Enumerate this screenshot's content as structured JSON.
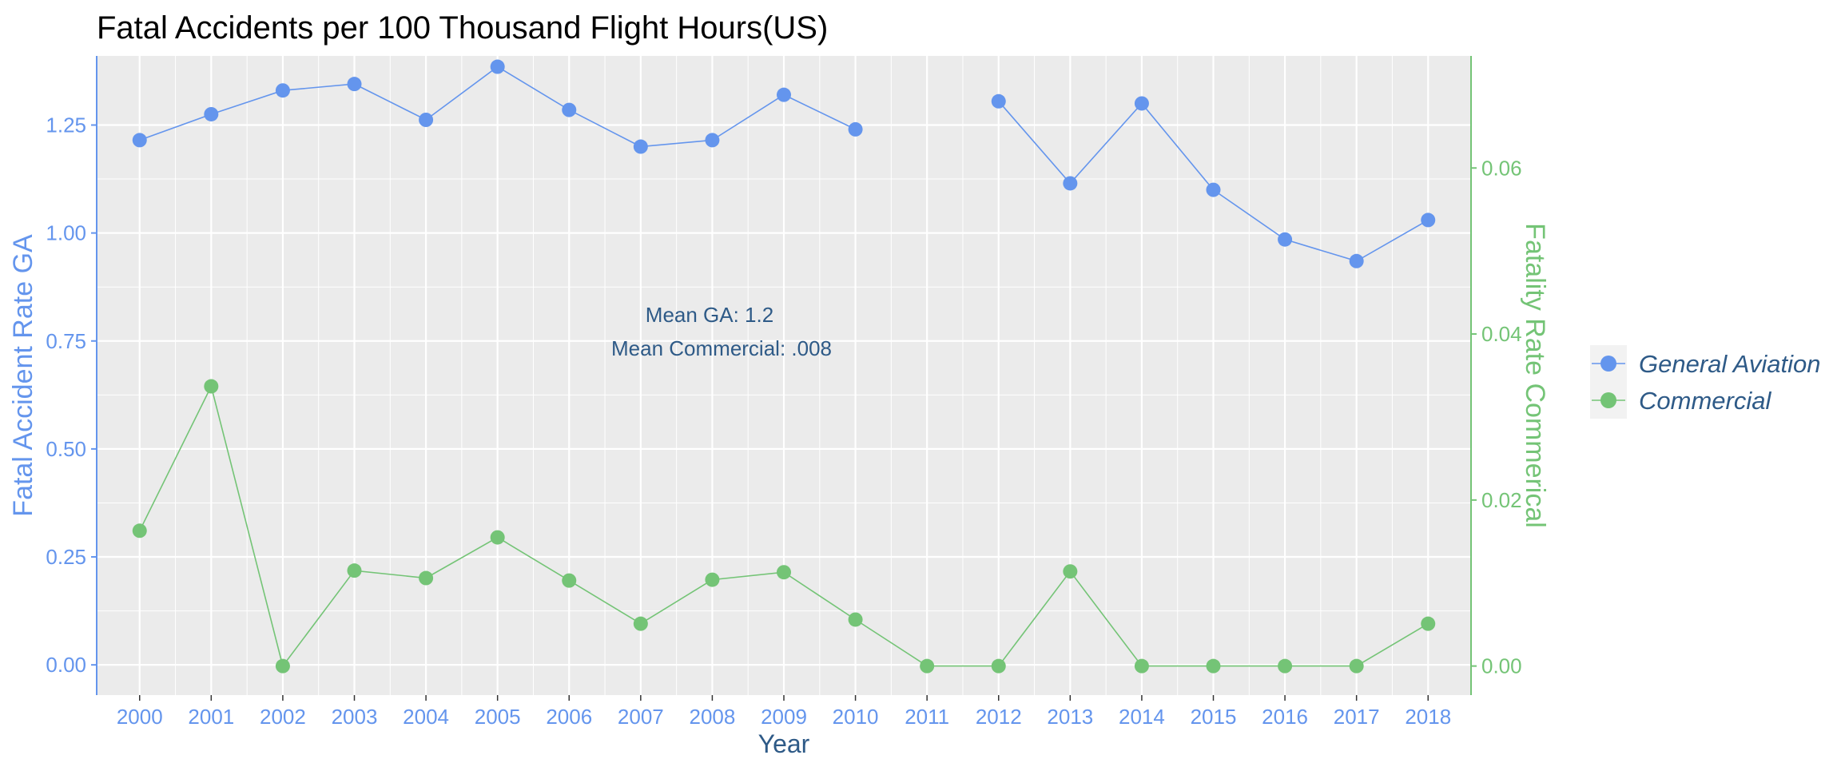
{
  "colors": {
    "ga": "#6495ED",
    "commercial": "#74C476",
    "panel": "#EBEBEB",
    "grid": "#FFFFFF",
    "text_dark": "#2E5A87",
    "legend_bg": "#F2F2F2"
  },
  "chart_data": {
    "type": "line",
    "title": "Fatal Accidents per 100 Thousand Flight Hours(US)",
    "xlabel": "Year",
    "ylabel": "Fatal Accident Rate GA",
    "y2label": "Fatality Rate Commerical",
    "categories": [
      "2000",
      "2001",
      "2002",
      "2003",
      "2004",
      "2005",
      "2006",
      "2007",
      "2008",
      "2009",
      "2010",
      "2011",
      "2012",
      "2013",
      "2014",
      "2015",
      "2016",
      "2017",
      "2018"
    ],
    "ylim": [
      -0.07,
      1.41
    ],
    "y2lim": [
      -0.0035,
      0.0735
    ],
    "yticks": [
      "0.00",
      "0.25",
      "0.50",
      "0.75",
      "1.00",
      "1.25"
    ],
    "y2ticks": [
      "0.00",
      "0.02",
      "0.04",
      "0.06"
    ],
    "series": [
      {
        "name": "General Aviation",
        "axis": "left",
        "values": [
          1.215,
          1.275,
          1.33,
          1.345,
          1.262,
          1.385,
          1.285,
          1.2,
          1.215,
          1.32,
          1.24,
          null,
          1.305,
          1.115,
          1.3,
          1.1,
          0.985,
          0.935,
          1.03
        ]
      },
      {
        "name": "Commercial",
        "axis": "right",
        "values": [
          0.0163,
          0.0337,
          0.0,
          0.0115,
          0.0106,
          0.0155,
          0.0103,
          0.0051,
          0.0104,
          0.0113,
          0.0056,
          0.0,
          0.0,
          0.0114,
          0.0,
          0.0,
          0.0,
          0.0,
          0.0051
        ]
      }
    ],
    "annotations": [
      "Mean GA: 1.2",
      "Mean Commercial: .008"
    ],
    "legend": [
      "General Aviation",
      "Commercial"
    ],
    "legend_position": "right",
    "grid": true
  }
}
